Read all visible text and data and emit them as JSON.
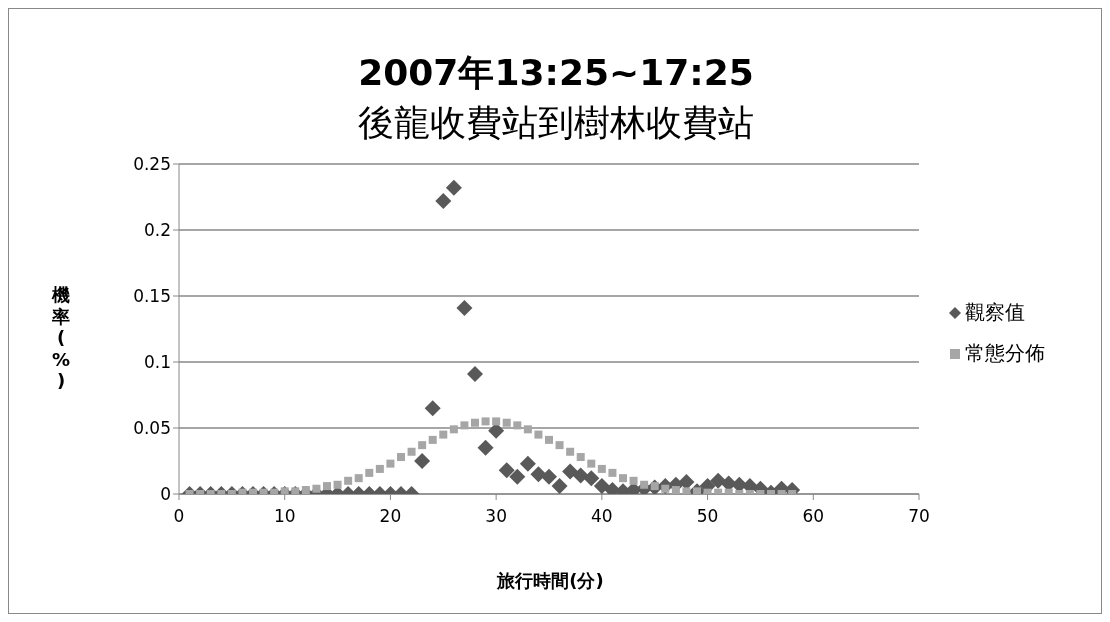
{
  "chart_data": {
    "type": "scatter",
    "title": "2007年13:25~17:25",
    "subtitle": "後龍收費站到樹林收費站",
    "xlabel": "旅行時間(分)",
    "ylabel": "機率(%)",
    "x": [
      1,
      2,
      3,
      4,
      5,
      6,
      7,
      8,
      9,
      10,
      11,
      12,
      13,
      14,
      15,
      16,
      17,
      18,
      19,
      20,
      21,
      22,
      23,
      24,
      25,
      26,
      27,
      28,
      29,
      30,
      31,
      32,
      33,
      34,
      35,
      36,
      37,
      38,
      39,
      40,
      41,
      42,
      43,
      44,
      45,
      46,
      47,
      48,
      49,
      50,
      51,
      52,
      53,
      54,
      55,
      56,
      57,
      58
    ],
    "series": [
      {
        "name": "觀察值",
        "color": "#595959",
        "marker": "diamond",
        "values": [
          0,
          0,
          0,
          0,
          0,
          0,
          0,
          0,
          0,
          0,
          0,
          0,
          0,
          0,
          0,
          0,
          0,
          0,
          0,
          0,
          0,
          0,
          0.025,
          0.065,
          0.222,
          0.232,
          0.141,
          0.091,
          0.035,
          0.048,
          0.018,
          0.013,
          0.023,
          0.015,
          0.013,
          0.006,
          0.017,
          0.014,
          0.012,
          0.006,
          0.003,
          0.002,
          0.003,
          0.004,
          0.005,
          0.006,
          0.007,
          0.009,
          0.002,
          0.006,
          0.01,
          0.008,
          0.007,
          0.006,
          0.004,
          0.001,
          0.004,
          0.003
        ]
      },
      {
        "name": "常態分佈",
        "color": "#a6a6a6",
        "marker": "square",
        "values": [
          0,
          0,
          0,
          0,
          0,
          0.001,
          0.001,
          0.001,
          0.001,
          0.002,
          0.002,
          0.003,
          0.004,
          0.006,
          0.007,
          0.01,
          0.012,
          0.016,
          0.019,
          0.023,
          0.028,
          0.032,
          0.037,
          0.041,
          0.045,
          0.049,
          0.052,
          0.054,
          0.055,
          0.055,
          0.054,
          0.052,
          0.049,
          0.045,
          0.041,
          0.037,
          0.032,
          0.028,
          0.023,
          0.019,
          0.016,
          0.012,
          0.01,
          0.007,
          0.006,
          0.004,
          0.003,
          0.002,
          0.002,
          0.001,
          0.001,
          0.001,
          0,
          0,
          0,
          0,
          0,
          0
        ]
      }
    ],
    "xlim": [
      0,
      70
    ],
    "xticks": [
      0,
      10,
      20,
      30,
      40,
      50,
      60,
      70
    ],
    "ylim": [
      0,
      0.25
    ],
    "yticks": [
      0,
      0.05,
      0.1,
      0.15,
      0.2,
      0.25
    ],
    "grid": "y",
    "legend": "right"
  }
}
